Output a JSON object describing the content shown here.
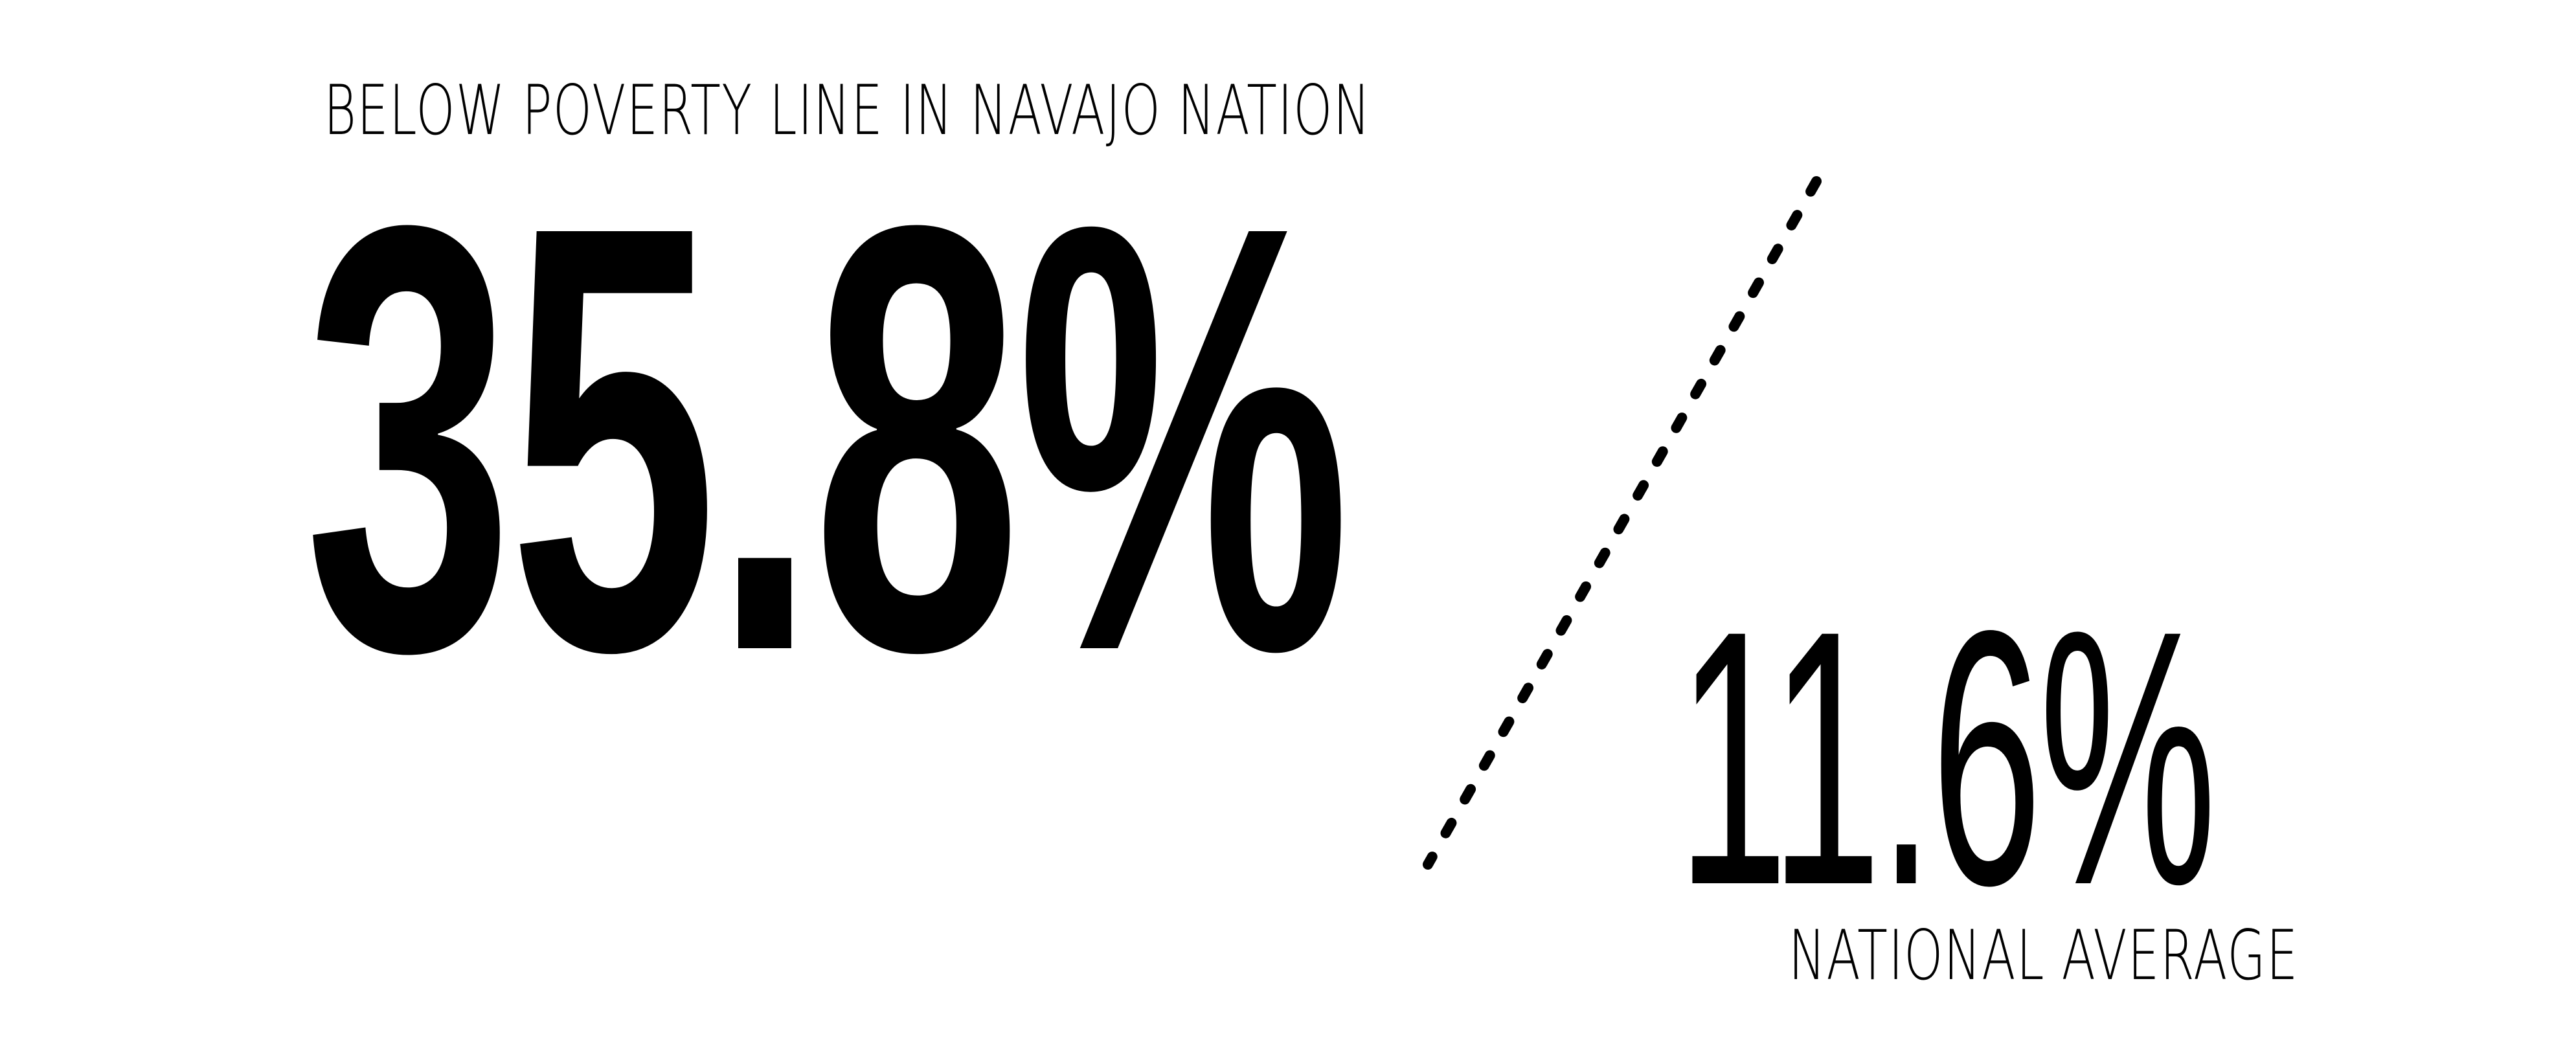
{
  "primary": {
    "label": "BELOW POVERTY LINE IN NAVAJO NATION",
    "value": "35.8%"
  },
  "secondary": {
    "value": "11.6%",
    "label": "NATIONAL AVERAGE"
  },
  "colors": {
    "text": "#000000",
    "background": "#ffffff"
  }
}
